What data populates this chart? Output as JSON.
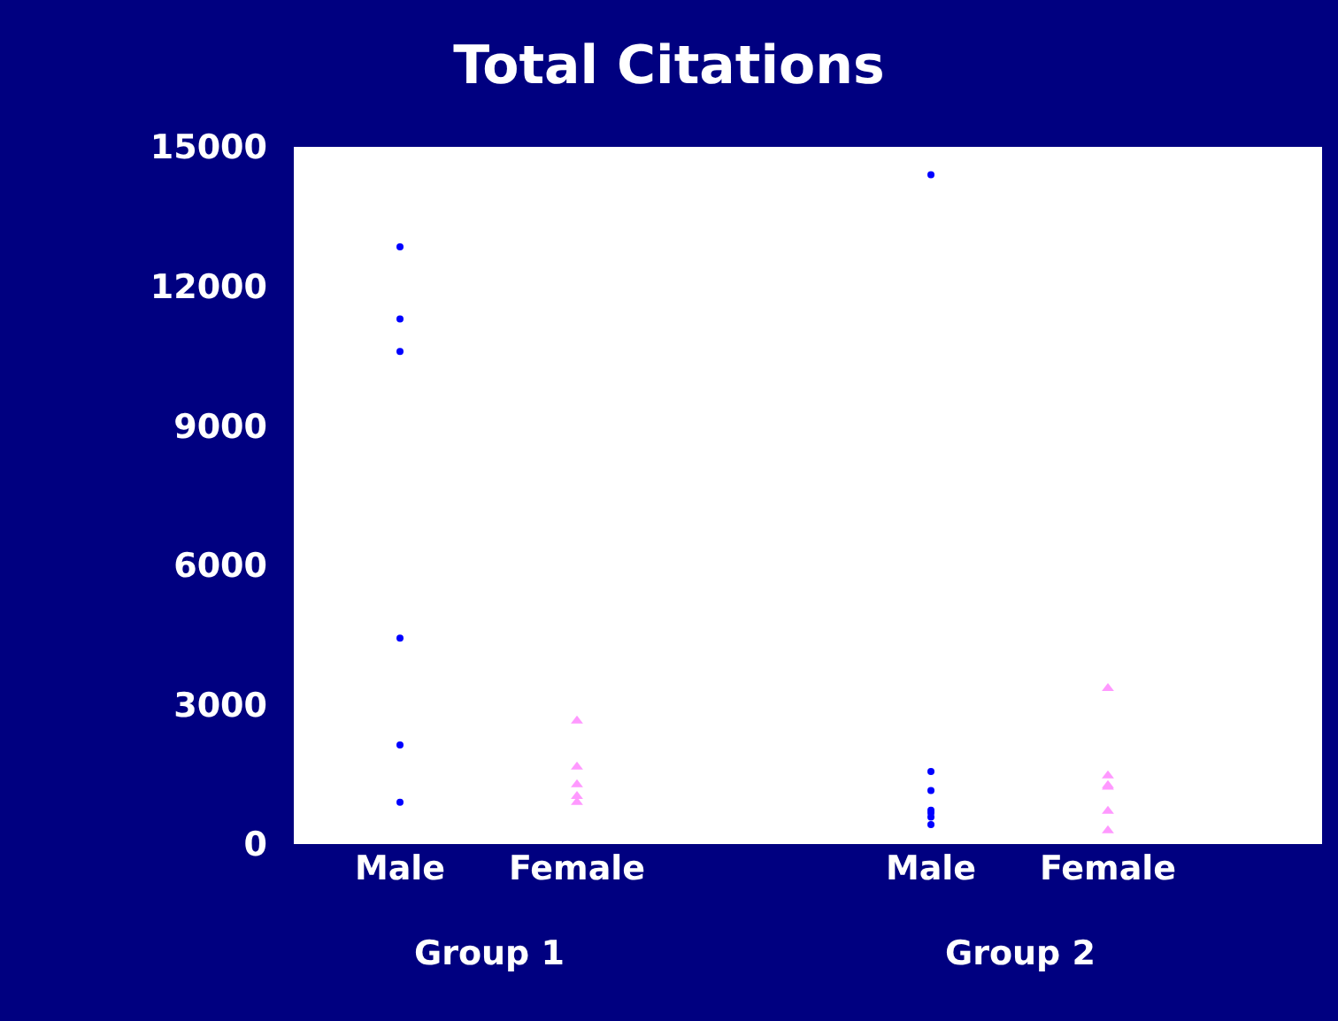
{
  "chart_data": {
    "type": "scatter",
    "title": "Total Citations",
    "categories": [
      "Male",
      "Female",
      null,
      "Male",
      "Female"
    ],
    "ylim": [
      0,
      15000
    ],
    "yticks": [
      0,
      3000,
      6000,
      9000,
      12000,
      15000
    ],
    "annotations": [
      "Group 1",
      "Group 2"
    ],
    "series": [
      {
        "color": "#0000ff",
        "marker": "circle",
        "values": [
          12850,
          null,
          null,
          14400,
          null
        ]
      },
      {
        "color": "#0000ff",
        "marker": "circle",
        "values": [
          11300,
          null,
          null,
          1560,
          null
        ]
      },
      {
        "color": "#0000ff",
        "marker": "circle",
        "values": [
          10600,
          null,
          null,
          1150,
          null
        ]
      },
      {
        "color": "#0000ff",
        "marker": "circle",
        "values": [
          4430,
          null,
          null,
          730,
          null
        ]
      },
      {
        "color": "#0000ff",
        "marker": "circle",
        "values": [
          2130,
          null,
          null,
          670,
          null
        ]
      },
      {
        "color": "#0000ff",
        "marker": "circle",
        "values": [
          900,
          null,
          null,
          580,
          null
        ]
      },
      {
        "color": "#0000ff",
        "marker": "circle",
        "values": [
          null,
          null,
          null,
          420,
          null
        ]
      },
      {
        "color": "#ff99ff",
        "marker": "triangle",
        "values": [
          null,
          2650,
          null,
          null,
          3350
        ]
      },
      {
        "color": "#ff99ff",
        "marker": "triangle",
        "values": [
          null,
          1660,
          null,
          null,
          1470
        ]
      },
      {
        "color": "#ff99ff",
        "marker": "triangle",
        "values": [
          null,
          1280,
          null,
          null,
          1260
        ]
      },
      {
        "color": "#ff99ff",
        "marker": "triangle",
        "values": [
          null,
          1030,
          null,
          null,
          1230
        ]
      },
      {
        "color": "#ff99ff",
        "marker": "triangle",
        "values": [
          null,
          900,
          null,
          null,
          710
        ]
      },
      {
        "color": "#ff99ff",
        "marker": "triangle",
        "values": [
          null,
          null,
          null,
          null,
          290
        ]
      }
    ]
  }
}
